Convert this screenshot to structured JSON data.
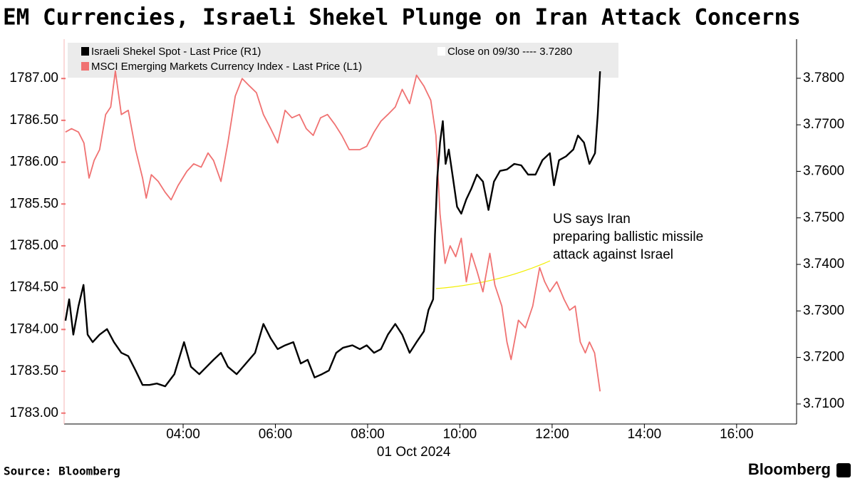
{
  "chart_data": {
    "type": "line",
    "title": "EM Currencies, Israeli Shekel Plunge on Iran Attack Concerns",
    "xlabel": "01 Oct 2024",
    "source": "Source: Bloomberg",
    "brand": "Bloomberg",
    "close_note": "Close on 09/30 ---- 3.7280",
    "annotation": "US says Iran preparing ballistic missile attack against Israel",
    "annotation_color": "#f2ee00",
    "xlim": [
      1.42,
      17.3
    ],
    "xticks": [
      {
        "value": 4,
        "label": "04:00"
      },
      {
        "value": 6,
        "label": "06:00"
      },
      {
        "value": 8,
        "label": "08:00"
      },
      {
        "value": 10,
        "label": "10:00"
      },
      {
        "value": 12,
        "label": "12:00"
      },
      {
        "value": 14,
        "label": "14:00"
      },
      {
        "value": 16,
        "label": "16:00"
      }
    ],
    "ylim": [
      1782.87,
      1787.47
    ],
    "yticks": [
      {
        "value": 1783,
        "label": "1783.00"
      },
      {
        "value": 1783.5,
        "label": "1783.50"
      },
      {
        "value": 1784,
        "label": "1784.00"
      },
      {
        "value": 1784.5,
        "label": "1784.50"
      },
      {
        "value": 1785,
        "label": "1785.00"
      },
      {
        "value": 1785.5,
        "label": "1785.50"
      },
      {
        "value": 1786,
        "label": "1786.00"
      },
      {
        "value": 1786.5,
        "label": "1786.50"
      },
      {
        "value": 1787,
        "label": "1787.00"
      }
    ],
    "y2lim": [
      3.7057,
      3.7884
    ],
    "y2ticks": [
      {
        "value": 3.71,
        "label": "3.7100"
      },
      {
        "value": 3.72,
        "label": "3.7200"
      },
      {
        "value": 3.73,
        "label": "3.7300"
      },
      {
        "value": 3.74,
        "label": "3.7400"
      },
      {
        "value": 3.75,
        "label": "3.7500"
      },
      {
        "value": 3.76,
        "label": "3.7600"
      },
      {
        "value": 3.77,
        "label": "3.7700"
      },
      {
        "value": 3.78,
        "label": "3.7800"
      }
    ],
    "series": [
      {
        "name": "Israeli Shekel Spot - Last Price (R1)",
        "color": "#000000",
        "axis": "y2",
        "x": [
          1.45,
          1.53,
          1.62,
          1.73,
          1.84,
          1.93,
          2.04,
          2.19,
          2.35,
          2.5,
          2.66,
          2.81,
          2.97,
          3.12,
          3.27,
          3.43,
          3.61,
          3.81,
          4.02,
          4.17,
          4.35,
          4.51,
          4.66,
          4.82,
          4.97,
          5.16,
          5.36,
          5.56,
          5.74,
          5.9,
          6.05,
          6.21,
          6.39,
          6.55,
          6.7,
          6.85,
          7.01,
          7.16,
          7.32,
          7.47,
          7.67,
          7.83,
          7.98,
          8.14,
          8.29,
          8.44,
          8.6,
          8.75,
          8.91,
          9.06,
          9.22,
          9.32,
          9.42,
          9.46,
          9.51,
          9.57,
          9.63,
          9.69,
          9.76,
          9.85,
          9.94,
          10.03,
          10.14,
          10.25,
          10.37,
          10.5,
          10.62,
          10.74,
          10.87,
          11.02,
          11.18,
          11.33,
          11.48,
          11.64,
          11.79,
          11.95,
          12.04,
          12.15,
          12.3,
          12.46,
          12.56,
          12.69,
          12.81,
          12.93,
          12.99,
          13.04
        ],
        "values": [
          3.7279,
          3.7325,
          3.7249,
          3.731,
          3.7356,
          3.7249,
          3.7233,
          3.7249,
          3.7261,
          3.7233,
          3.721,
          3.7203,
          3.7172,
          3.7141,
          3.7141,
          3.7144,
          3.7138,
          3.7164,
          3.7233,
          3.718,
          3.7164,
          3.718,
          3.7195,
          3.721,
          3.718,
          3.7164,
          3.7187,
          3.721,
          3.7272,
          3.7241,
          3.7218,
          3.7226,
          3.7233,
          3.7187,
          3.7195,
          3.7157,
          3.7164,
          3.7172,
          3.721,
          3.7221,
          3.7226,
          3.7218,
          3.7226,
          3.721,
          3.7218,
          3.7249,
          3.7272,
          3.7249,
          3.721,
          3.7233,
          3.7256,
          3.7302,
          3.7325,
          3.7463,
          3.7586,
          3.7662,
          3.7708,
          3.7616,
          3.7647,
          3.7586,
          3.7524,
          3.7509,
          3.754,
          3.7563,
          3.7593,
          3.7578,
          3.7517,
          3.7578,
          3.7601,
          3.7604,
          3.7616,
          3.7613,
          3.7593,
          3.7593,
          3.7624,
          3.7639,
          3.757,
          3.7624,
          3.7632,
          3.7647,
          3.7677,
          3.7662,
          3.7616,
          3.7639,
          3.7723,
          3.7815
        ]
      },
      {
        "name": "MSCI Emerging Markets Currency Index - Last Price (L1)",
        "color": "#f07272",
        "axis": "y",
        "x": [
          1.45,
          1.58,
          1.73,
          1.85,
          1.96,
          2.07,
          2.19,
          2.32,
          2.43,
          2.53,
          2.66,
          2.81,
          2.97,
          3.12,
          3.2,
          3.31,
          3.46,
          3.61,
          3.74,
          3.89,
          4.08,
          4.23,
          4.39,
          4.54,
          4.66,
          4.82,
          4.97,
          5.13,
          5.28,
          5.44,
          5.59,
          5.74,
          5.9,
          6.05,
          6.21,
          6.36,
          6.52,
          6.67,
          6.82,
          6.98,
          7.13,
          7.29,
          7.44,
          7.6,
          7.83,
          7.98,
          8.14,
          8.29,
          8.44,
          8.6,
          8.75,
          8.91,
          9.06,
          9.22,
          9.37,
          9.48,
          9.57,
          9.68,
          9.79,
          9.91,
          10.03,
          10.14,
          10.25,
          10.37,
          10.5,
          10.65,
          10.76,
          10.91,
          11.02,
          11.11,
          11.27,
          11.42,
          11.58,
          11.73,
          11.84,
          11.95,
          12.1,
          12.26,
          12.38,
          12.5,
          12.61,
          12.72,
          12.81,
          12.92,
          13.04
        ],
        "values": [
          1786.36,
          1786.4,
          1786.36,
          1786.23,
          1785.81,
          1786.02,
          1786.15,
          1786.57,
          1786.66,
          1787.09,
          1786.57,
          1786.62,
          1786.15,
          1785.81,
          1785.57,
          1785.85,
          1785.77,
          1785.64,
          1785.55,
          1785.72,
          1785.89,
          1785.98,
          1785.94,
          1786.11,
          1786.02,
          1785.77,
          1786.23,
          1786.79,
          1787.0,
          1786.91,
          1786.83,
          1786.57,
          1786.4,
          1786.23,
          1786.62,
          1786.53,
          1786.57,
          1786.4,
          1786.32,
          1786.53,
          1786.57,
          1786.45,
          1786.32,
          1786.15,
          1786.15,
          1786.19,
          1786.36,
          1786.49,
          1786.57,
          1786.66,
          1786.87,
          1786.7,
          1787.04,
          1786.91,
          1786.74,
          1786.32,
          1785.38,
          1784.79,
          1785.0,
          1784.87,
          1785.09,
          1784.57,
          1784.91,
          1784.7,
          1784.45,
          1784.91,
          1784.53,
          1784.28,
          1783.85,
          1783.64,
          1784.11,
          1784.02,
          1784.28,
          1784.74,
          1784.57,
          1784.45,
          1784.57,
          1784.36,
          1784.23,
          1784.28,
          1783.85,
          1783.72,
          1783.85,
          1783.72,
          1783.26
        ]
      }
    ]
  }
}
